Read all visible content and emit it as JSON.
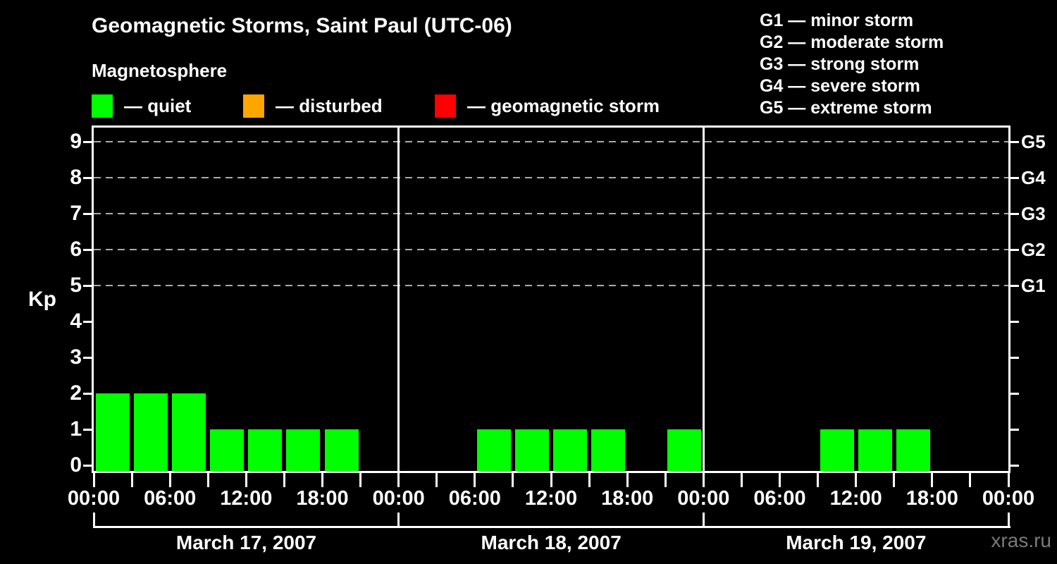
{
  "title": "Geomagnetic Storms, Saint Paul (UTC-06)",
  "subtitle": "Magnetosphere",
  "kp_legend": {
    "quiet": {
      "label": "— quiet",
      "color": "#00ff00"
    },
    "disturbed": {
      "label": "— disturbed",
      "color": "#ffa500"
    },
    "storm": {
      "label": "— geomagnetic storm",
      "color": "#ff0000"
    }
  },
  "g_legend": {
    "lines": [
      "G1 — minor storm",
      "G2 — moderate storm",
      "G3 — strong storm",
      "G4 — severe storm",
      "G5 — extreme storm"
    ]
  },
  "watermark": "xras.ru",
  "colors": {
    "background": "#000000",
    "text": "#ffffff",
    "frame": "#ffffff",
    "gridline": "#aaaaaa",
    "quiet": "#00ff00",
    "disturbed": "#ffa500",
    "storm": "#ff0000",
    "watermark_text": "#7a7a7a"
  },
  "chart_data": {
    "type": "bar",
    "title": "Geomagnetic Storms, Saint Paul (UTC-06)",
    "ylabel": "Kp",
    "ylim": [
      0,
      9.5
    ],
    "yticks": [
      0,
      1,
      2,
      3,
      4,
      5,
      6,
      7,
      8,
      9
    ],
    "grid": "horizontal dashed lines at Kp 5,6,7,8,9",
    "gridline_levels": [
      5,
      6,
      7,
      8,
      9
    ],
    "right_axis_labels": [
      {
        "label": "G5",
        "kp": 9
      },
      {
        "label": "G4",
        "kp": 8
      },
      {
        "label": "G3",
        "kp": 7
      },
      {
        "label": "G2",
        "kp": 6
      },
      {
        "label": "G1",
        "kp": 5
      }
    ],
    "interval_hours": 3,
    "x_tick_every_hours": 3,
    "x_label_every_hours": 6,
    "x_tick_labels_cycle": [
      "00:00",
      "06:00",
      "12:00",
      "18:00"
    ],
    "bar_color_rule": {
      "quiet_kp_max": 3,
      "disturbed_kp": 4,
      "storm_kp_min": 5
    },
    "days": [
      {
        "date": "March 17, 2007",
        "kp": [
          2,
          2,
          2,
          1,
          1,
          1,
          1,
          0
        ]
      },
      {
        "date": "March 18, 2007",
        "kp": [
          0,
          0,
          1,
          1,
          1,
          1,
          0,
          1
        ]
      },
      {
        "date": "March 19, 2007",
        "kp": [
          0,
          0,
          0,
          1,
          1,
          1,
          0,
          0
        ]
      }
    ]
  }
}
